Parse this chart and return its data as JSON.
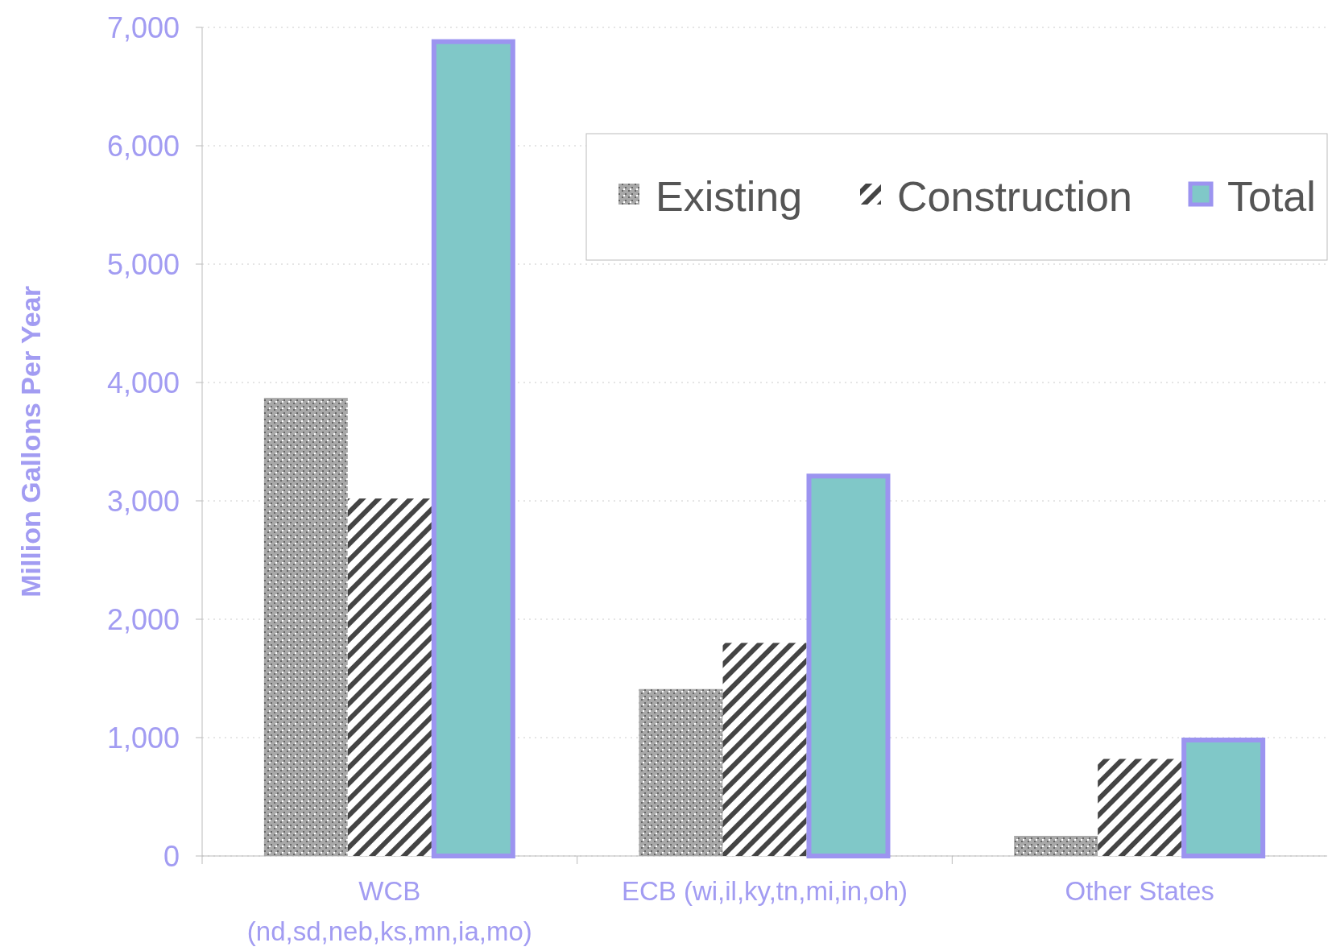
{
  "chart_data": {
    "type": "bar",
    "ylabel": "Million Gallons Per Year",
    "categories": [
      "WCB\n(nd,sd,neb,ks,mn,ia,mo)",
      "ECB (wi,il,ky,tn,mi,in,oh)",
      "Other States"
    ],
    "series": [
      {
        "name": "Existing",
        "color": "#a8a8a8",
        "values": [
          3870,
          1410,
          170
        ]
      },
      {
        "name": "Construction",
        "color": "#444444",
        "values": [
          3020,
          1800,
          820
        ]
      },
      {
        "name": "Total",
        "color": "#80c8c8",
        "values": [
          6900,
          3230,
          1000
        ]
      }
    ],
    "ylim": [
      0,
      7000
    ],
    "yticks": [
      {
        "value": 0,
        "label": "0"
      },
      {
        "value": 1000,
        "label": "1,000"
      },
      {
        "value": 2000,
        "label": "2,000"
      },
      {
        "value": 3000,
        "label": "3,000"
      },
      {
        "value": 4000,
        "label": "4,000"
      },
      {
        "value": 5000,
        "label": "5,000"
      },
      {
        "value": 6000,
        "label": "6,000"
      },
      {
        "value": 7000,
        "label": "7,000"
      }
    ],
    "grid": "y",
    "legend": "top right"
  }
}
